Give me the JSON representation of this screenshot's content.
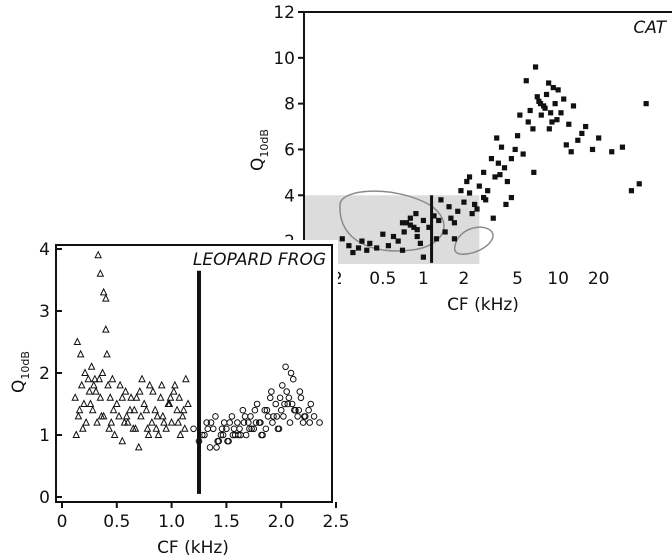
{
  "chart_data": [
    {
      "type": "scatter",
      "title": "CAT",
      "xlabel": "CF (kHz)",
      "ylabel_main": "Q",
      "ylabel_sub": "10dB",
      "x_scale": "log",
      "x_ticks": [
        0.2,
        0.5,
        1,
        2,
        5,
        10,
        20
      ],
      "x_tick_labels": [
        "0.2",
        "0.5",
        "1",
        "2",
        "5",
        "10",
        "20"
      ],
      "xlim": [
        0.13,
        70
      ],
      "y_ticks": [
        2,
        4,
        6,
        8,
        10,
        12
      ],
      "y_tick_labels": [
        "2",
        "4",
        "6",
        "8",
        "10",
        "12"
      ],
      "ylim": [
        1,
        12
      ],
      "grid": false,
      "divider_x": 1.15,
      "shaded_region": {
        "x": [
          0.13,
          2.6
        ],
        "y": [
          1,
          4
        ]
      },
      "series": [
        {
          "marker": "square",
          "x": [
            0.15,
            0.25,
            0.28,
            0.3,
            0.33,
            0.35,
            0.38,
            0.4,
            0.45,
            0.5,
            0.55,
            0.6,
            0.65,
            0.7,
            0.75,
            0.8,
            0.85,
            0.9,
            0.95,
            1.0,
            0.72,
            0.8,
            0.88,
            1.0,
            1.1,
            1.2,
            1.3,
            1.45,
            1.55,
            1.6,
            1.7,
            1.8,
            1.9,
            2.0,
            2.1,
            2.2,
            2.3,
            2.4,
            2.6,
            2.8,
            3.0,
            3.2,
            3.4,
            3.6,
            3.8,
            4.0,
            4.2,
            4.5,
            4.8,
            5.0,
            5.5,
            6.0,
            6.5,
            7.0,
            7.5,
            8.0,
            8.5,
            9.0,
            9.5,
            10.0,
            10.5,
            11.0,
            12.0,
            13.0,
            14.0,
            3.5,
            4.5,
            5.2,
            5.8,
            6.2,
            6.8,
            7.2,
            7.8,
            8.2,
            8.8,
            9.2,
            9.8,
            2.2,
            2.5,
            2.9,
            3.3,
            3.7,
            4.1,
            6.6,
            7.4,
            8.6,
            11.5,
            12.5,
            15,
            16,
            18,
            20,
            25,
            30,
            35,
            40,
            45,
            1.25,
            1.35,
            0.9,
            0.7,
            1.7,
            2.8
          ],
          "y": [
            1.1,
            2.1,
            1.8,
            1.5,
            1.7,
            2.0,
            1.6,
            1.9,
            1.7,
            2.3,
            1.8,
            2.2,
            2.0,
            1.6,
            2.8,
            3.0,
            2.6,
            2.2,
            1.9,
            2.9,
            2.4,
            2.7,
            3.2,
            1.3,
            2.6,
            3.1,
            2.9,
            2.4,
            3.5,
            3.0,
            2.8,
            3.3,
            4.2,
            3.7,
            4.6,
            4.1,
            3.2,
            3.6,
            4.4,
            5.0,
            4.2,
            5.6,
            4.8,
            5.4,
            6.1,
            5.2,
            4.6,
            3.9,
            6.0,
            6.6,
            5.8,
            7.2,
            6.9,
            8.3,
            7.5,
            7.8,
            8.9,
            7.2,
            8.0,
            8.6,
            7.6,
            8.2,
            7.1,
            7.9,
            6.4,
            6.5,
            5.6,
            7.5,
            9.0,
            7.7,
            9.6,
            8.1,
            7.9,
            8.4,
            7.6,
            8.7,
            7.3,
            4.8,
            3.4,
            3.8,
            3.0,
            4.9,
            3.6,
            5.0,
            8.0,
            6.9,
            6.2,
            5.9,
            6.7,
            7.0,
            6.0,
            6.5,
            5.9,
            6.1,
            4.2,
            4.5,
            8.0,
            2.1,
            3.8,
            2.5,
            2.8,
            2.1,
            3.9
          ]
        }
      ]
    },
    {
      "type": "scatter",
      "title": "LEOPARD FROG",
      "xlabel": "CF (kHz)",
      "ylabel_main": "Q",
      "ylabel_sub": "10dB",
      "xlim": [
        0,
        2.5
      ],
      "x_ticks": [
        0,
        0.5,
        1.0,
        1.5,
        2.0,
        2.5
      ],
      "x_tick_labels": [
        "0",
        "0.5",
        "1.0",
        "1.5",
        "2.0",
        "2.5"
      ],
      "ylim": [
        0,
        4
      ],
      "y_ticks": [
        0,
        1,
        2,
        3,
        4
      ],
      "y_tick_labels": [
        "0",
        "1",
        "2",
        "3",
        "4"
      ],
      "grid": false,
      "divider_x": 1.25,
      "series": [
        {
          "marker": "triangle",
          "x": [
            0.12,
            0.15,
            0.18,
            0.2,
            0.22,
            0.25,
            0.28,
            0.3,
            0.32,
            0.35,
            0.38,
            0.4,
            0.42,
            0.45,
            0.48,
            0.5,
            0.52,
            0.55,
            0.58,
            0.6,
            0.62,
            0.65,
            0.68,
            0.7,
            0.72,
            0.75,
            0.78,
            0.8,
            0.82,
            0.85,
            0.88,
            0.9,
            0.92,
            0.95,
            0.98,
            1.0,
            1.02,
            1.05,
            1.08,
            1.1,
            1.12,
            1.15,
            0.14,
            0.17,
            0.21,
            0.24,
            0.27,
            0.31,
            0.34,
            0.37,
            0.41,
            0.44,
            0.47,
            0.53,
            0.57,
            0.63,
            0.67,
            0.73,
            0.77,
            0.83,
            0.87,
            0.93,
            0.97,
            1.03,
            1.07,
            1.13,
            0.33,
            0.35,
            0.38,
            0.4,
            0.13,
            0.19,
            0.29,
            0.36,
            0.43,
            0.55,
            0.66,
            0.79,
            0.91,
            1.06,
            0.16,
            0.26,
            0.46,
            0.59,
            0.71,
            0.86,
            0.99,
            1.11
          ],
          "y": [
            1.6,
            1.3,
            1.8,
            1.5,
            1.2,
            1.7,
            1.4,
            1.9,
            1.2,
            1.6,
            1.3,
            2.7,
            1.8,
            1.2,
            1.0,
            1.5,
            1.3,
            0.9,
            1.7,
            1.2,
            1.4,
            1.1,
            1.6,
            0.8,
            1.3,
            1.5,
            1.1,
            1.8,
            1.2,
            1.4,
            1.0,
            1.6,
            1.3,
            1.1,
            1.5,
            1.2,
            1.7,
            1.4,
            1.0,
            1.3,
            1.1,
            1.5,
            2.5,
            2.3,
            2.0,
            1.9,
            2.1,
            1.7,
            1.9,
            2.0,
            2.3,
            1.6,
            1.4,
            1.8,
            1.2,
            1.6,
            1.1,
            1.9,
            1.4,
            1.7,
            1.3,
            1.2,
            1.5,
            1.8,
            1.6,
            1.9,
            3.9,
            3.6,
            3.3,
            3.2,
            1.0,
            1.1,
            1.8,
            1.3,
            1.1,
            1.6,
            1.4,
            1.0,
            1.8,
            1.2,
            1.4,
            1.5,
            1.9,
            1.3,
            1.7,
            1.1,
            1.6,
            1.4
          ]
        },
        {
          "marker": "circle",
          "x": [
            1.2,
            1.25,
            1.3,
            1.32,
            1.35,
            1.38,
            1.4,
            1.42,
            1.45,
            1.48,
            1.5,
            1.52,
            1.55,
            1.58,
            1.6,
            1.62,
            1.65,
            1.68,
            1.7,
            1.72,
            1.75,
            1.78,
            1.8,
            1.82,
            1.85,
            1.88,
            1.9,
            1.92,
            1.95,
            1.98,
            2.0,
            2.02,
            2.05,
            2.08,
            2.1,
            2.12,
            2.15,
            2.18,
            2.2,
            2.25,
            2.3,
            2.35,
            1.28,
            1.33,
            1.43,
            1.47,
            1.53,
            1.57,
            1.63,
            1.67,
            1.73,
            1.77,
            1.83,
            1.87,
            1.93,
            1.97,
            2.03,
            2.07,
            2.13,
            2.17,
            2.22,
            2.27,
            1.36,
            1.46,
            1.56,
            1.66,
            1.76,
            1.86,
            1.96,
            2.06,
            2.16,
            2.26,
            1.41,
            1.51,
            1.61,
            1.71,
            1.81,
            1.91,
            2.01,
            2.11,
            2.21,
            2.04,
            2.09,
            1.99
          ],
          "y": [
            1.1,
            0.9,
            1.0,
            1.2,
            0.8,
            1.1,
            1.3,
            0.9,
            1.0,
            1.2,
            1.1,
            0.9,
            1.3,
            1.0,
            1.2,
            1.1,
            1.4,
            1.0,
            1.2,
            1.3,
            1.1,
            1.5,
            1.2,
            1.0,
            1.4,
            1.3,
            1.6,
            1.2,
            1.5,
            1.1,
            1.4,
            1.3,
            1.7,
            1.2,
            1.5,
            1.4,
            1.3,
            1.6,
            1.2,
            1.4,
            1.3,
            1.2,
            1.0,
            1.1,
            0.9,
            1.0,
            1.2,
            1.1,
            1.0,
            1.3,
            1.1,
            1.2,
            1.0,
            1.4,
            1.3,
            1.1,
            1.5,
            1.6,
            1.4,
            1.7,
            1.3,
            1.5,
            1.2,
            1.1,
            1.0,
            1.2,
            1.4,
            1.1,
            1.3,
            1.5,
            1.4,
            1.2,
            0.8,
            0.9,
            1.0,
            1.1,
            1.2,
            1.7,
            1.8,
            1.9,
            1.3,
            2.1,
            2.0,
            1.6
          ]
        }
      ]
    }
  ]
}
